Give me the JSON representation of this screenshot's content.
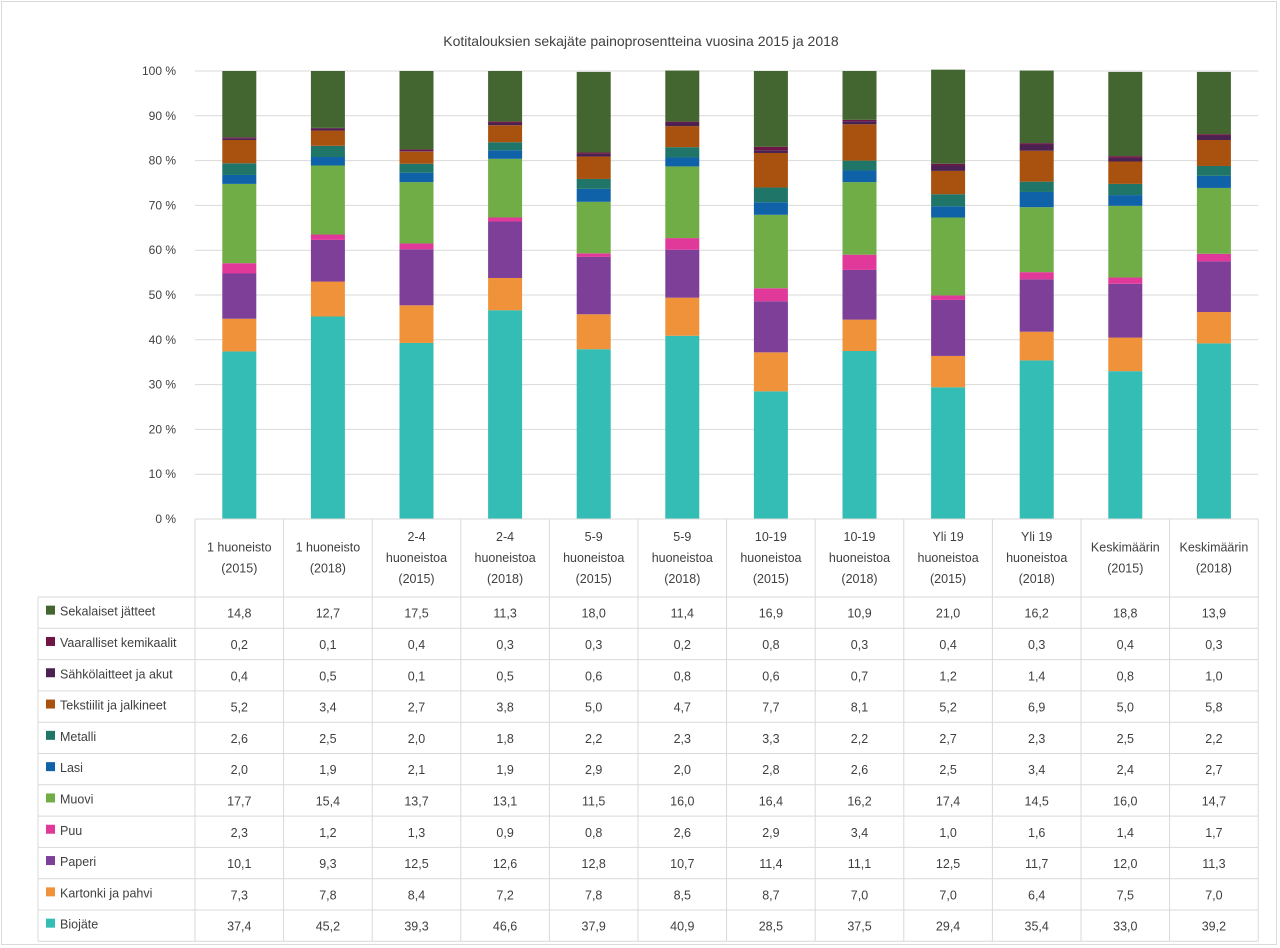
{
  "chart_data": {
    "type": "bar",
    "stacked": true,
    "title": "Kotitalouksien sekajäte painoprosentteina vuosina 2015 ja 2018",
    "xlabel": "",
    "ylabel": "",
    "ylim": [
      0,
      100
    ],
    "yticks": [
      "0 %",
      "10 %",
      "20 %",
      "30 %",
      "40 %",
      "50 %",
      "60 %",
      "70 %",
      "80 %",
      "90 %",
      "100 %"
    ],
    "grid": true,
    "legend": "data-table-left",
    "categories": [
      [
        "1 huoneisto",
        "(2015)"
      ],
      [
        "1 huoneisto",
        "(2018)"
      ],
      [
        "2-4",
        "huoneistoa",
        "(2015)"
      ],
      [
        "2-4",
        "huoneistoa",
        "(2018)"
      ],
      [
        "5-9",
        "huoneistoa",
        "(2015)"
      ],
      [
        "5-9",
        "huoneistoa",
        "(2018)"
      ],
      [
        "10-19",
        "huoneistoa",
        "(2015)"
      ],
      [
        "10-19",
        "huoneistoa",
        "(2018)"
      ],
      [
        "Yli 19",
        "huoneistoa",
        "(2015)"
      ],
      [
        "Yli 19",
        "huoneistoa",
        "(2018)"
      ],
      [
        "Keskimäärin",
        "(2015)"
      ],
      [
        "Keskimäärin",
        "(2018)"
      ]
    ],
    "series": [
      {
        "name": "Biojäte",
        "color": "#33bdb4",
        "values": [
          37.4,
          45.2,
          39.3,
          46.6,
          37.9,
          40.9,
          28.5,
          37.5,
          29.4,
          35.4,
          33.0,
          39.2
        ],
        "labels": [
          "37,4",
          "45,2",
          "39,3",
          "46,6",
          "37,9",
          "40,9",
          "28,5",
          "37,5",
          "29,4",
          "35,4",
          "33,0",
          "39,2"
        ]
      },
      {
        "name": "Kartonki ja pahvi",
        "color": "#f0923a",
        "values": [
          7.3,
          7.8,
          8.4,
          7.2,
          7.8,
          8.5,
          8.7,
          7.0,
          7.0,
          6.4,
          7.5,
          7.0
        ],
        "labels": [
          "7,3",
          "7,8",
          "8,4",
          "7,2",
          "7,8",
          "8,5",
          "8,7",
          "7,0",
          "7,0",
          "6,4",
          "7,5",
          "7,0"
        ]
      },
      {
        "name": "Paperi",
        "color": "#7e3f98",
        "values": [
          10.1,
          9.3,
          12.5,
          12.6,
          12.8,
          10.7,
          11.4,
          11.1,
          12.5,
          11.7,
          12.0,
          11.3
        ],
        "labels": [
          "10,1",
          "9,3",
          "12,5",
          "12,6",
          "12,8",
          "10,7",
          "11,4",
          "11,1",
          "12,5",
          "11,7",
          "12,0",
          "11,3"
        ]
      },
      {
        "name": "Puu",
        "color": "#e0399a",
        "values": [
          2.3,
          1.2,
          1.3,
          0.9,
          0.8,
          2.6,
          2.9,
          3.4,
          1.0,
          1.6,
          1.4,
          1.7
        ],
        "labels": [
          "2,3",
          "1,2",
          "1,3",
          "0,9",
          "0,8",
          "2,6",
          "2,9",
          "3,4",
          "1,0",
          "1,6",
          "1,4",
          "1,7"
        ]
      },
      {
        "name": "Muovi",
        "color": "#70ad47",
        "values": [
          17.7,
          15.4,
          13.7,
          13.1,
          11.5,
          16.0,
          16.4,
          16.2,
          17.4,
          14.5,
          16.0,
          14.7
        ],
        "labels": [
          "17,7",
          "15,4",
          "13,7",
          "13,1",
          "11,5",
          "16,0",
          "16,4",
          "16,2",
          "17,4",
          "14,5",
          "16,0",
          "14,7"
        ]
      },
      {
        "name": "Lasi",
        "color": "#0f62a8",
        "values": [
          2.0,
          1.9,
          2.1,
          1.9,
          2.9,
          2.0,
          2.8,
          2.6,
          2.5,
          3.4,
          2.4,
          2.7
        ],
        "labels": [
          "2,0",
          "1,9",
          "2,1",
          "1,9",
          "2,9",
          "2,0",
          "2,8",
          "2,6",
          "2,5",
          "3,4",
          "2,4",
          "2,7"
        ]
      },
      {
        "name": "Metalli",
        "color": "#1f7567",
        "values": [
          2.6,
          2.5,
          2.0,
          1.8,
          2.2,
          2.3,
          3.3,
          2.2,
          2.7,
          2.3,
          2.5,
          2.2
        ],
        "labels": [
          "2,6",
          "2,5",
          "2,0",
          "1,8",
          "2,2",
          "2,3",
          "3,3",
          "2,2",
          "2,7",
          "2,3",
          "2,5",
          "2,2"
        ]
      },
      {
        "name": "Tekstiilit ja jalkineet",
        "color": "#a9520f",
        "values": [
          5.2,
          3.4,
          2.7,
          3.8,
          5.0,
          4.7,
          7.7,
          8.1,
          5.2,
          6.9,
          5.0,
          5.8
        ],
        "labels": [
          "5,2",
          "3,4",
          "2,7",
          "3,8",
          "5,0",
          "4,7",
          "7,7",
          "8,1",
          "5,2",
          "6,9",
          "5,0",
          "5,8"
        ]
      },
      {
        "name": "Sähkölaitteet ja akut",
        "color": "#4a2150",
        "values": [
          0.4,
          0.5,
          0.1,
          0.5,
          0.6,
          0.8,
          0.6,
          0.7,
          1.2,
          1.4,
          0.8,
          1.0
        ],
        "labels": [
          "0,4",
          "0,5",
          "0,1",
          "0,5",
          "0,6",
          "0,8",
          "0,6",
          "0,7",
          "1,2",
          "1,4",
          "0,8",
          "1,0"
        ]
      },
      {
        "name": "Vaaralliset kemikaalit",
        "color": "#6d1545",
        "values": [
          0.2,
          0.1,
          0.4,
          0.3,
          0.3,
          0.2,
          0.8,
          0.3,
          0.4,
          0.3,
          0.4,
          0.3
        ],
        "labels": [
          "0,2",
          "0,1",
          "0,4",
          "0,3",
          "0,3",
          "0,2",
          "0,8",
          "0,3",
          "0,4",
          "0,3",
          "0,4",
          "0,3"
        ]
      },
      {
        "name": "Sekalaiset jätteet",
        "color": "#436530",
        "values": [
          14.8,
          12.7,
          17.5,
          11.3,
          18.0,
          11.4,
          16.9,
          10.9,
          21.0,
          16.2,
          18.8,
          13.9
        ],
        "labels": [
          "14,8",
          "12,7",
          "17,5",
          "11,3",
          "18,0",
          "11,4",
          "16,9",
          "10,9",
          "21,0",
          "16,2",
          "18,8",
          "13,9"
        ]
      }
    ],
    "table_row_order": [
      "Sekalaiset jätteet",
      "Vaaralliset kemikaalit",
      "Sähkölaitteet ja akut",
      "Tekstiilit ja jalkineet",
      "Metalli",
      "Lasi",
      "Muovi",
      "Puu",
      "Paperi",
      "Kartonki ja pahvi",
      "Biojäte"
    ]
  }
}
